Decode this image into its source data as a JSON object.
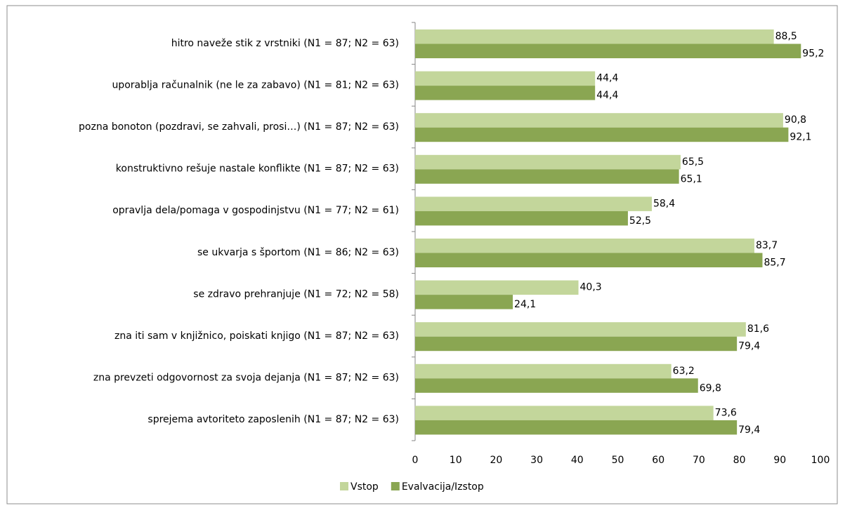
{
  "chart_data": {
    "type": "hbar",
    "categories": [
      "hitro naveže stik z vrstniki (N1 = 87; N2 = 63)",
      "uporablja računalnik (ne le za zabavo) (N1 = 81; N2 = 63)",
      "pozna bonoton (pozdravi, se zahvali,  prosi…) (N1 = 87; N2 = 63)",
      "konstruktivno rešuje nastale  konflikte (N1 = 87; N2 = 63)",
      "opravlja dela/pomaga  v gospodinjstvu (N1 = 77; N2 = 61)",
      "se ukvarja s športom (N1 = 86; N2 = 63)",
      "se zdravo prehranjuje (N1 = 72; N2 = 58)",
      "zna iti sam  v knjižnico, poiskati  knjigo (N1 = 87; N2 = 63)",
      "zna prevzeti odgovornost za svoja dejanja (N1 = 87; N2 = 63)",
      "sprejema avtoriteto  zaposlenih (N1 = 87; N2 = 63)"
    ],
    "series": [
      {
        "name": "Vstop",
        "color": "#c3d69b",
        "values": [
          88.5,
          44.4,
          90.8,
          65.5,
          58.4,
          83.7,
          40.3,
          81.6,
          63.2,
          73.6
        ],
        "value_labels": [
          "88,5",
          "44,4",
          "90,8",
          "65,5",
          "58,4",
          "83,7",
          "40,3",
          "81,6",
          "63,2",
          "73,6"
        ]
      },
      {
        "name": "Evalvacija/Izstop",
        "color": "#8aa652",
        "values": [
          95.2,
          44.4,
          92.1,
          65.1,
          52.5,
          85.7,
          24.1,
          79.4,
          69.8,
          79.4
        ],
        "value_labels": [
          "95,2",
          "44,4",
          "92,1",
          "65,1",
          "52,5",
          "85,7",
          "24,1",
          "79,4",
          "69,8",
          "79,4"
        ]
      }
    ],
    "xlim": [
      0,
      100
    ],
    "xticks": [
      0,
      10,
      20,
      30,
      40,
      50,
      60,
      70,
      80,
      90,
      100
    ],
    "legend": "bottom"
  }
}
